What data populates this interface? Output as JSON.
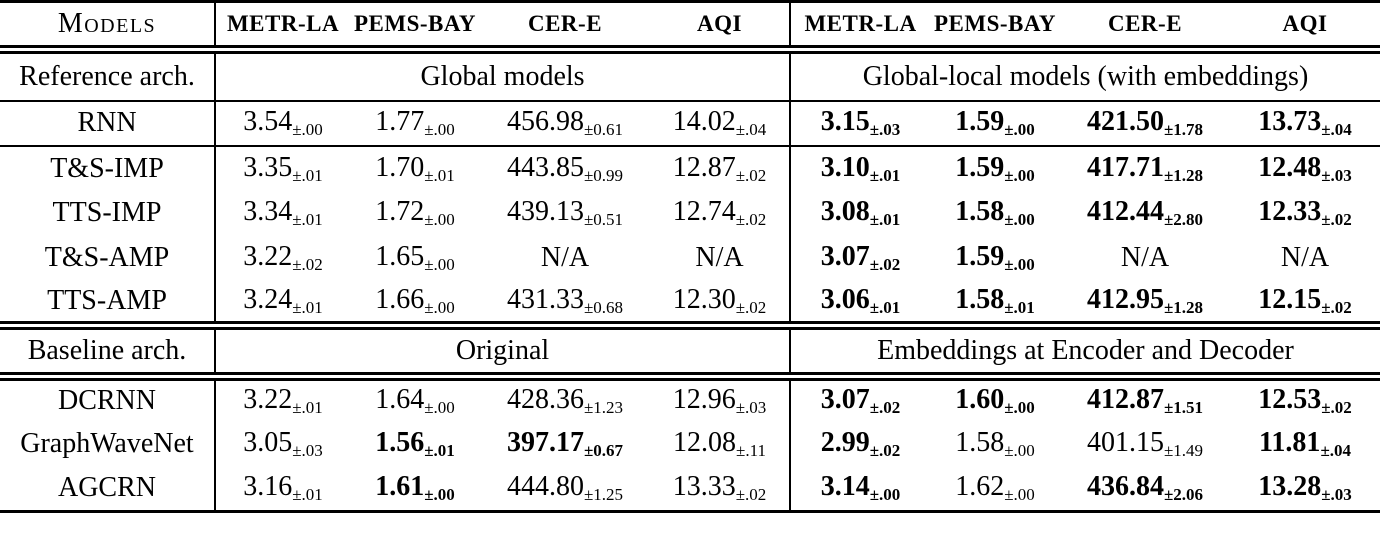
{
  "table": {
    "models_label": "Models",
    "datasets": [
      "METR-LA",
      "PEMS-BAY",
      "CER-E",
      "AQI"
    ],
    "na_label": "N/A",
    "sections": [
      {
        "label": "Reference arch.",
        "left_title": "Global models",
        "right_title": "Global-local models (with embeddings)",
        "rows": [
          {
            "model": "RNN",
            "cells": [
              {
                "v": "3.54",
                "s": "±.00",
                "b": false
              },
              {
                "v": "1.77",
                "s": "±.00",
                "b": false
              },
              {
                "v": "456.98",
                "s": "±0.61",
                "b": false
              },
              {
                "v": "14.02",
                "s": "±.04",
                "b": false
              },
              {
                "v": "3.15",
                "s": "±.03",
                "b": true
              },
              {
                "v": "1.59",
                "s": "±.00",
                "b": true
              },
              {
                "v": "421.50",
                "s": "±1.78",
                "b": true
              },
              {
                "v": "13.73",
                "s": "±.04",
                "b": true
              }
            ]
          },
          {
            "model": "T&S-IMP",
            "cells": [
              {
                "v": "3.35",
                "s": "±.01",
                "b": false
              },
              {
                "v": "1.70",
                "s": "±.01",
                "b": false
              },
              {
                "v": "443.85",
                "s": "±0.99",
                "b": false
              },
              {
                "v": "12.87",
                "s": "±.02",
                "b": false
              },
              {
                "v": "3.10",
                "s": "±.01",
                "b": true
              },
              {
                "v": "1.59",
                "s": "±.00",
                "b": true
              },
              {
                "v": "417.71",
                "s": "±1.28",
                "b": true
              },
              {
                "v": "12.48",
                "s": "±.03",
                "b": true
              }
            ]
          },
          {
            "model": "TTS-IMP",
            "cells": [
              {
                "v": "3.34",
                "s": "±.01",
                "b": false
              },
              {
                "v": "1.72",
                "s": "±.00",
                "b": false
              },
              {
                "v": "439.13",
                "s": "±0.51",
                "b": false
              },
              {
                "v": "12.74",
                "s": "±.02",
                "b": false
              },
              {
                "v": "3.08",
                "s": "±.01",
                "b": true
              },
              {
                "v": "1.58",
                "s": "±.00",
                "b": true
              },
              {
                "v": "412.44",
                "s": "±2.80",
                "b": true
              },
              {
                "v": "12.33",
                "s": "±.02",
                "b": true
              }
            ]
          },
          {
            "model": "T&S-AMP",
            "cells": [
              {
                "v": "3.22",
                "s": "±.02",
                "b": false
              },
              {
                "v": "1.65",
                "s": "±.00",
                "b": false
              },
              {
                "v": "N/A",
                "s": "",
                "b": false
              },
              {
                "v": "N/A",
                "s": "",
                "b": false
              },
              {
                "v": "3.07",
                "s": "±.02",
                "b": true
              },
              {
                "v": "1.59",
                "s": "±.00",
                "b": true
              },
              {
                "v": "N/A",
                "s": "",
                "b": false
              },
              {
                "v": "N/A",
                "s": "",
                "b": false
              }
            ]
          },
          {
            "model": "TTS-AMP",
            "cells": [
              {
                "v": "3.24",
                "s": "±.01",
                "b": false
              },
              {
                "v": "1.66",
                "s": "±.00",
                "b": false
              },
              {
                "v": "431.33",
                "s": "±0.68",
                "b": false
              },
              {
                "v": "12.30",
                "s": "±.02",
                "b": false
              },
              {
                "v": "3.06",
                "s": "±.01",
                "b": true
              },
              {
                "v": "1.58",
                "s": "±.01",
                "b": true
              },
              {
                "v": "412.95",
                "s": "±1.28",
                "b": true
              },
              {
                "v": "12.15",
                "s": "±.02",
                "b": true
              }
            ]
          }
        ]
      },
      {
        "label": "Baseline arch.",
        "left_title": "Original",
        "right_title": "Embeddings at Encoder and Decoder",
        "rows": [
          {
            "model": "DCRNN",
            "cells": [
              {
                "v": "3.22",
                "s": "±.01",
                "b": false
              },
              {
                "v": "1.64",
                "s": "±.00",
                "b": false
              },
              {
                "v": "428.36",
                "s": "±1.23",
                "b": false
              },
              {
                "v": "12.96",
                "s": "±.03",
                "b": false
              },
              {
                "v": "3.07",
                "s": "±.02",
                "b": true
              },
              {
                "v": "1.60",
                "s": "±.00",
                "b": true
              },
              {
                "v": "412.87",
                "s": "±1.51",
                "b": true
              },
              {
                "v": "12.53",
                "s": "±.02",
                "b": true
              }
            ]
          },
          {
            "model": "GraphWaveNet",
            "cells": [
              {
                "v": "3.05",
                "s": "±.03",
                "b": false
              },
              {
                "v": "1.56",
                "s": "±.01",
                "b": true
              },
              {
                "v": "397.17",
                "s": "±0.67",
                "b": true
              },
              {
                "v": "12.08",
                "s": "±.11",
                "b": false
              },
              {
                "v": "2.99",
                "s": "±.02",
                "b": true
              },
              {
                "v": "1.58",
                "s": "±.00",
                "b": false
              },
              {
                "v": "401.15",
                "s": "±1.49",
                "b": false
              },
              {
                "v": "11.81",
                "s": "±.04",
                "b": true
              }
            ]
          },
          {
            "model": "AGCRN",
            "cells": [
              {
                "v": "3.16",
                "s": "±.01",
                "b": false
              },
              {
                "v": "1.61",
                "s": "±.00",
                "b": true
              },
              {
                "v": "444.80",
                "s": "±1.25",
                "b": false
              },
              {
                "v": "13.33",
                "s": "±.02",
                "b": false
              },
              {
                "v": "3.14",
                "s": "±.00",
                "b": true
              },
              {
                "v": "1.62",
                "s": "±.00",
                "b": false
              },
              {
                "v": "436.84",
                "s": "±2.06",
                "b": true
              },
              {
                "v": "13.28",
                "s": "±.03",
                "b": true
              }
            ]
          }
        ]
      }
    ]
  }
}
